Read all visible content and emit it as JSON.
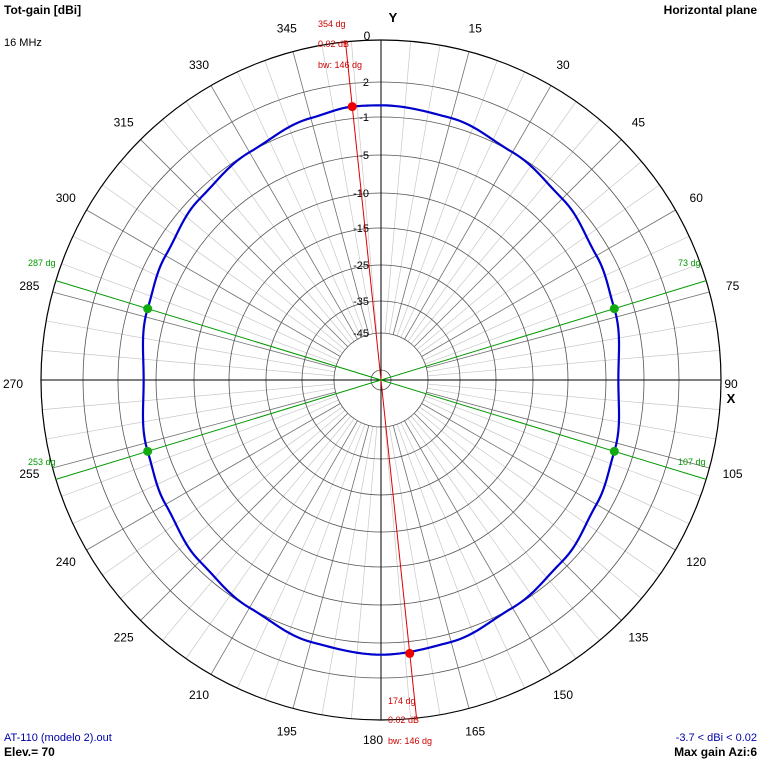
{
  "header": {
    "title": "Tot-gain [dBi]",
    "frequency": "16 MHz",
    "plane": "Horizontal plane"
  },
  "footer": {
    "file": "AT-110 (modelo 2).out",
    "elevation": "Elev.= 70",
    "gain_range": "-3.7 < dBi < 0.02",
    "max_gain": "Max gain Azi:6"
  },
  "axes": {
    "y_label": "Y",
    "x_label": "X"
  },
  "markers": {
    "max_forward": {
      "angle": "354 dg",
      "gain": "0.02 dB",
      "beamwidth": "bw: 146 dg"
    },
    "max_back": {
      "angle": "174 dg",
      "gain": "0.02 dB",
      "beamwidth": "bw: 146 dg"
    },
    "half_power_labels": [
      "287 dg",
      "73 dg",
      "253 dg",
      "107 dg"
    ]
  },
  "colors": {
    "pattern": "#0000cc",
    "main_lobe": "#dd0000",
    "half_power": "#009900",
    "grid": "#000000"
  },
  "chart_data": {
    "type": "polar",
    "angle_ticks": [
      "0",
      "15",
      "30",
      "45",
      "60",
      "75",
      "90",
      "105",
      "120",
      "135",
      "150",
      "165",
      "180",
      "195",
      "210",
      "225",
      "240",
      "255",
      "270",
      "285",
      "300",
      "315",
      "330",
      "345"
    ],
    "gain_ticks": [
      "2",
      "-1",
      "-5",
      "-10",
      "-15",
      "-25",
      "-35",
      "-45"
    ],
    "ring_values": [
      2,
      -1,
      -5,
      -10,
      -15,
      -25,
      -35,
      -45
    ],
    "scale_max": 5,
    "series": [
      {
        "name": "",
        "angles": [
          0,
          15,
          30,
          45,
          60,
          73,
          90,
          107,
          120,
          135,
          150,
          165,
          180,
          195,
          210,
          225,
          240,
          253,
          270,
          287,
          300,
          315,
          330,
          345,
          354
        ],
        "gain_dbi": [
          0.0,
          -0.3,
          -1.0,
          -1.7,
          -2.5,
          -3.0,
          -3.7,
          -3.0,
          -2.5,
          -1.7,
          -1.0,
          -0.3,
          0.0,
          -0.3,
          -1.0,
          -1.7,
          -2.5,
          -3.0,
          -3.7,
          -3.0,
          -2.5,
          -1.7,
          -1.0,
          -0.3,
          0.02
        ]
      }
    ],
    "max_gain_azimuth_1": 354,
    "max_gain_azimuth_2": 174,
    "max_gain_dbi": 0.02,
    "half_power_azimuths": [
      287,
      73,
      253,
      107
    ],
    "beamwidth": 146
  }
}
